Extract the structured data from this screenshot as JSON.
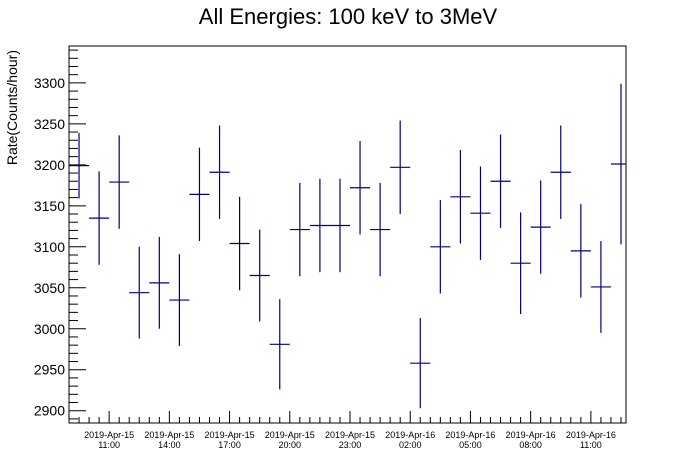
{
  "chart_data": {
    "type": "scatter",
    "title": "All Energies:  100 keV to 3MeV",
    "ylabel": "Rate(Counts/hour)",
    "xlabel": "",
    "ylim": [
      2885,
      3345
    ],
    "yticks": [
      2900,
      2950,
      3000,
      3050,
      3100,
      3150,
      3200,
      3250,
      3300
    ],
    "xtick_labels": [
      [
        "2019-Apr-15",
        "11:00"
      ],
      [
        "2019-Apr-15",
        "14:00"
      ],
      [
        "2019-Apr-15",
        "17:00"
      ],
      [
        "2019-Apr-15",
        "20:00"
      ],
      [
        "2019-Apr-15",
        "23:00"
      ],
      [
        "2019-Apr-16",
        "02:00"
      ],
      [
        "2019-Apr-16",
        "05:00"
      ],
      [
        "2019-Apr-16",
        "08:00"
      ],
      [
        "2019-Apr-16",
        "11:00"
      ]
    ],
    "xlim": [
      "2019-04-15 09:00",
      "2019-04-16 12:45"
    ],
    "grid": false,
    "legend": "none",
    "marker_color": "#000080",
    "series": [
      {
        "points": [
          {
            "x": "2019-04-15 09:00",
            "y": 3199,
            "err": 40
          },
          {
            "x": "2019-04-15 10:00",
            "y": 3135,
            "err": 57
          },
          {
            "x": "2019-04-15 11:00",
            "y": 3179,
            "err": 57
          },
          {
            "x": "2019-04-15 12:00",
            "y": 3044,
            "err": 56
          },
          {
            "x": "2019-04-15 13:00",
            "y": 3056,
            "err": 56
          },
          {
            "x": "2019-04-15 14:00",
            "y": 3035,
            "err": 56
          },
          {
            "x": "2019-04-15 15:00",
            "y": 3164,
            "err": 57
          },
          {
            "x": "2019-04-15 16:00",
            "y": 3191,
            "err": 57
          },
          {
            "x": "2019-04-15 17:00",
            "y": 3104,
            "err": 57
          },
          {
            "x": "2019-04-15 18:00",
            "y": 3065,
            "err": 56
          },
          {
            "x": "2019-04-15 19:00",
            "y": 2981,
            "err": 55
          },
          {
            "x": "2019-04-15 20:00",
            "y": 3121,
            "err": 57
          },
          {
            "x": "2019-04-15 21:00",
            "y": 3126,
            "err": 57
          },
          {
            "x": "2019-04-15 22:00",
            "y": 3126,
            "err": 57
          },
          {
            "x": "2019-04-15 23:00",
            "y": 3172,
            "err": 57
          },
          {
            "x": "2019-04-16 00:00",
            "y": 3121,
            "err": 57
          },
          {
            "x": "2019-04-16 01:00",
            "y": 3197,
            "err": 57
          },
          {
            "x": "2019-04-16 02:00",
            "y": 2958,
            "err": 55
          },
          {
            "x": "2019-04-16 03:00",
            "y": 3100,
            "err": 57
          },
          {
            "x": "2019-04-16 04:00",
            "y": 3161,
            "err": 57
          },
          {
            "x": "2019-04-16 05:00",
            "y": 3141,
            "err": 57
          },
          {
            "x": "2019-04-16 06:00",
            "y": 3180,
            "err": 57
          },
          {
            "x": "2019-04-16 07:00",
            "y": 3080,
            "err": 62
          },
          {
            "x": "2019-04-16 08:00",
            "y": 3124,
            "err": 57
          },
          {
            "x": "2019-04-16 09:00",
            "y": 3191,
            "err": 57
          },
          {
            "x": "2019-04-16 10:00",
            "y": 3095,
            "err": 57
          },
          {
            "x": "2019-04-16 11:00",
            "y": 3051,
            "err": 56
          },
          {
            "x": "2019-04-16 12:00",
            "y": 3201,
            "err": 98
          }
        ]
      }
    ]
  }
}
